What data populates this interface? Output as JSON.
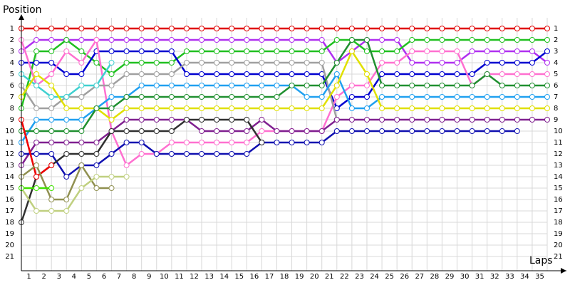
{
  "chart_data": {
    "type": "lap-chart",
    "y_title": "Position",
    "x_title": "Laps",
    "xlim": [
      0,
      35
    ],
    "ylim": [
      1,
      21
    ],
    "y_reversed": true,
    "grid": true,
    "xticks": [
      1,
      2,
      3,
      4,
      5,
      6,
      7,
      8,
      9,
      10,
      11,
      12,
      13,
      14,
      15,
      16,
      17,
      18,
      19,
      20,
      21,
      22,
      23,
      24,
      25,
      26,
      27,
      28,
      29,
      30,
      31,
      32,
      33,
      34,
      35
    ],
    "yticks": [
      1,
      2,
      3,
      4,
      5,
      6,
      7,
      8,
      9,
      10,
      11,
      12,
      13,
      14,
      15,
      16,
      17,
      18,
      19,
      20,
      21
    ],
    "x": [
      0,
      1,
      2,
      3,
      4,
      5,
      6,
      7,
      8,
      9,
      10,
      11,
      12,
      13,
      14,
      15,
      16,
      17,
      18,
      19,
      20,
      21,
      22,
      23,
      24,
      25,
      26,
      27,
      28,
      29,
      30,
      31,
      32,
      33,
      34,
      35
    ],
    "series": [
      {
        "color": "#e00000",
        "values": [
          1,
          1,
          1,
          1,
          1,
          1,
          1,
          1,
          1,
          1,
          1,
          1,
          1,
          1,
          1,
          1,
          1,
          1,
          1,
          1,
          1,
          1,
          1,
          1,
          1,
          1,
          1,
          1,
          1,
          1,
          1,
          1,
          1,
          1,
          1,
          1
        ]
      },
      {
        "color": "#b030f0",
        "values": [
          3,
          2,
          2,
          2,
          2,
          2,
          2,
          2,
          2,
          2,
          2,
          2,
          2,
          2,
          2,
          2,
          2,
          2,
          2,
          2,
          2,
          4,
          3,
          2,
          2,
          2,
          4,
          4,
          4,
          4,
          3,
          3,
          3,
          3,
          3,
          4
        ]
      },
      {
        "color": "#20c020",
        "values": [
          8,
          3,
          3,
          2,
          3,
          4,
          5,
          4,
          4,
          4,
          4,
          3,
          3,
          3,
          3,
          3,
          3,
          3,
          3,
          3,
          3,
          2,
          2,
          3,
          3,
          3,
          2,
          2,
          2,
          2,
          2,
          2,
          2,
          2,
          2,
          2
        ]
      },
      {
        "color": "#0000d0",
        "values": [
          4,
          4,
          4,
          5,
          5,
          3,
          3,
          3,
          3,
          3,
          3,
          5,
          5,
          5,
          5,
          5,
          5,
          5,
          5,
          5,
          5,
          8,
          7,
          7,
          5,
          5,
          5,
          5,
          5,
          5,
          5,
          4,
          4,
          4,
          4,
          3
        ]
      },
      {
        "color": "#ff70d0",
        "values": [
          2,
          6,
          5,
          3,
          4,
          2,
          10,
          13,
          12,
          12,
          11,
          11,
          11,
          11,
          11,
          11,
          10,
          10,
          10,
          10,
          10,
          7,
          6,
          6,
          4,
          4,
          3,
          3,
          3,
          3,
          6,
          5,
          5,
          5,
          5,
          5
        ]
      },
      {
        "color": "#a0a0a0",
        "values": [
          6,
          8,
          8,
          7,
          7,
          6,
          6,
          5,
          5,
          5,
          5,
          4,
          4,
          4,
          4,
          4,
          4,
          4,
          4,
          4,
          4,
          9,
          null,
          null,
          null,
          null,
          null,
          null,
          null,
          null,
          null,
          null,
          null,
          null,
          null,
          null
        ]
      },
      {
        "color": "#20a0f0",
        "values": [
          11,
          9,
          9,
          9,
          9,
          8,
          7,
          7,
          6,
          6,
          6,
          6,
          6,
          6,
          6,
          6,
          6,
          6,
          6,
          7,
          7,
          5,
          8,
          8,
          7,
          7,
          7,
          7,
          7,
          7,
          7,
          7,
          7,
          7,
          7,
          7
        ]
      },
      {
        "color": "#40d0d0",
        "values": [
          5,
          6,
          7,
          7,
          6,
          6,
          4,
          null,
          null,
          null,
          null,
          null,
          null,
          null,
          null,
          null,
          null,
          null,
          null,
          null,
          null,
          null,
          null,
          null,
          null,
          null,
          null,
          null,
          null,
          null,
          null,
          null,
          null,
          null,
          null,
          null
        ]
      },
      {
        "color": "#e0e000",
        "values": [
          7,
          5,
          6,
          8,
          8,
          8,
          9,
          8,
          8,
          8,
          8,
          8,
          8,
          8,
          8,
          8,
          8,
          8,
          8,
          8,
          8,
          6,
          3,
          5,
          8,
          8,
          8,
          8,
          8,
          8,
          8,
          8,
          8,
          8,
          8,
          8
        ]
      },
      {
        "color": "#209030",
        "values": [
          10,
          10,
          10,
          10,
          10,
          8,
          8,
          7,
          7,
          7,
          7,
          7,
          7,
          7,
          7,
          7,
          7,
          7,
          6,
          6,
          6,
          4,
          2,
          2,
          6,
          6,
          6,
          6,
          6,
          6,
          6,
          5,
          6,
          6,
          6,
          6
        ]
      },
      {
        "color": "#802090",
        "values": [
          13,
          11,
          11,
          11,
          11,
          11,
          10,
          9,
          9,
          9,
          9,
          9,
          10,
          10,
          10,
          10,
          9,
          10,
          10,
          10,
          10,
          9,
          9,
          9,
          9,
          9,
          9,
          9,
          9,
          9,
          9,
          9,
          9,
          9,
          9,
          9
        ]
      },
      {
        "color": "#1010b0",
        "values": [
          12,
          12,
          12,
          14,
          13,
          13,
          12,
          11,
          11,
          12,
          12,
          12,
          12,
          12,
          12,
          12,
          11,
          11,
          11,
          11,
          11,
          10,
          10,
          10,
          10,
          10,
          10,
          10,
          10,
          10,
          10,
          10,
          10,
          10,
          null,
          null
        ]
      },
      {
        "color": "#303030",
        "values": [
          18,
          14,
          13,
          12,
          12,
          12,
          10,
          10,
          10,
          10,
          10,
          9,
          9,
          9,
          9,
          9,
          11,
          null,
          null,
          null,
          null,
          null,
          null,
          null,
          null,
          null,
          null,
          null,
          null,
          null,
          null,
          null,
          null,
          null,
          null,
          null
        ]
      },
      {
        "color": "#f00000",
        "values": [
          9,
          14,
          13,
          null,
          null,
          null,
          null,
          null,
          null,
          null,
          null,
          null,
          null,
          null,
          null,
          null,
          null,
          null,
          null,
          null,
          null,
          null,
          null,
          null,
          null,
          null,
          null,
          null,
          null,
          null,
          null,
          null,
          null,
          null,
          null,
          null
        ]
      },
      {
        "color": "#909050",
        "values": [
          14,
          13,
          16,
          16,
          13,
          15,
          15,
          null,
          null,
          null,
          null,
          null,
          null,
          null,
          null,
          null,
          null,
          null,
          null,
          null,
          null,
          null,
          null,
          null,
          null,
          null,
          null,
          null,
          null,
          null,
          null,
          null,
          null,
          null,
          null,
          null
        ]
      },
      {
        "color": "#c0d080",
        "values": [
          15,
          17,
          17,
          17,
          15,
          14,
          14,
          14,
          null,
          null,
          null,
          null,
          null,
          null,
          null,
          null,
          null,
          null,
          null,
          null,
          null,
          null,
          null,
          null,
          null,
          null,
          null,
          null,
          null,
          null,
          null,
          null,
          null,
          null,
          null,
          null
        ]
      },
      {
        "color": "#40e000",
        "values": [
          15,
          15,
          15,
          null,
          null,
          null,
          null,
          null,
          null,
          null,
          null,
          null,
          null,
          null,
          null,
          null,
          null,
          null,
          null,
          null,
          null,
          null,
          null,
          null,
          null,
          null,
          null,
          null,
          null,
          null,
          null,
          null,
          null,
          null,
          null,
          null
        ]
      }
    ]
  }
}
